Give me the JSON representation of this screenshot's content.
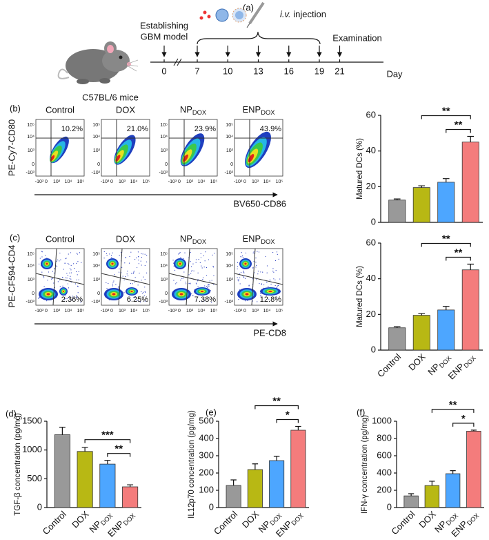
{
  "panel_a": {
    "label": "(a)",
    "mouse": "C57BL/6 mice",
    "model": [
      "Establishing",
      "GBM model"
    ],
    "injection_route": "i.v.",
    "injection": "injection",
    "examination": "Examination",
    "axis_label": "Day",
    "days": [
      0,
      7,
      10,
      13,
      16,
      19,
      21
    ]
  },
  "panel_b": {
    "label": "(b)",
    "y_axis": "PE-Cy7-CD80",
    "x_axis": "BV650-CD86",
    "ticks": [
      "-10³",
      "0",
      "10³",
      "10⁴",
      "10⁵"
    ],
    "plots": [
      {
        "title": "Control",
        "percent": "10.2%"
      },
      {
        "title": "DOX",
        "percent": "21.0%"
      },
      {
        "title": "NPDOX",
        "percent": "23.9%"
      },
      {
        "title": "ENPDOX",
        "percent": "43.9%"
      }
    ]
  },
  "panel_c": {
    "label": "(c)",
    "y_axis": "PE-CF594-CD4",
    "x_axis": "PE-CD8",
    "ticks": [
      "-10³",
      "0",
      "10³",
      "10⁴",
      "10⁵"
    ],
    "plots": [
      {
        "title": "Control",
        "percent": "2.36%"
      },
      {
        "title": "DOX",
        "percent": "6.25%"
      },
      {
        "title": "NPDOX",
        "percent": "7.38%"
      },
      {
        "title": "ENPDOX",
        "percent": "12.8%"
      }
    ]
  },
  "chart_data": [
    {
      "type": "bar",
      "y_label": "Matured DCs (%)",
      "categories": [
        null,
        null,
        null,
        null
      ],
      "values": [
        12.5,
        19.5,
        22.5,
        45
      ],
      "errors": [
        0.6,
        1.0,
        2.0,
        3.2
      ],
      "colors": [
        "#999999",
        "#b8b814",
        "#4da6ff",
        "#f47c7c"
      ],
      "ylim": [
        0,
        60
      ],
      "yticks": [
        0,
        20,
        40,
        60
      ],
      "significance": [
        {
          "label": "**",
          "from": 1,
          "to": 3
        },
        {
          "label": "**",
          "from": 2,
          "to": 3
        }
      ]
    },
    {
      "type": "bar",
      "y_label": "Matured DCs (%)",
      "categories": [
        "Control",
        "DOX",
        "NPDOX",
        "ENPDOX"
      ],
      "values": [
        12.5,
        19.5,
        22.5,
        45
      ],
      "errors": [
        0.6,
        1.0,
        2.0,
        3.2
      ],
      "colors": [
        "#999999",
        "#b8b814",
        "#4da6ff",
        "#f47c7c"
      ],
      "ylim": [
        0,
        60
      ],
      "yticks": [
        0,
        20,
        40,
        60
      ],
      "significance": [
        {
          "label": "**",
          "from": 1,
          "to": 3
        },
        {
          "label": "**",
          "from": 2,
          "to": 3
        }
      ]
    },
    {
      "type": "bar",
      "label": "(d)",
      "y_label": "TGF-β concentration (pg/mg)",
      "categories": [
        "Control",
        "DOX",
        "NPDOX",
        "ENPDOX"
      ],
      "values": [
        1265,
        975,
        755,
        360
      ],
      "errors": [
        130,
        70,
        65,
        35
      ],
      "colors": [
        "#999999",
        "#b8b814",
        "#4da6ff",
        "#f47c7c"
      ],
      "ylim": [
        0,
        1500
      ],
      "yticks": [
        0,
        500,
        1000,
        1500
      ],
      "significance": [
        {
          "label": "***",
          "from": 1,
          "to": 3
        },
        {
          "label": "**",
          "from": 2,
          "to": 3
        }
      ]
    },
    {
      "type": "bar",
      "label": "(e)",
      "y_label": "IL12p70 concentration (pg/mg)",
      "categories": [
        "Control",
        "DOX",
        "NPDOX",
        "ENPDOX"
      ],
      "values": [
        128,
        220,
        272,
        448
      ],
      "errors": [
        32,
        33,
        25,
        22
      ],
      "colors": [
        "#999999",
        "#b8b814",
        "#4da6ff",
        "#f47c7c"
      ],
      "ylim": [
        0,
        500
      ],
      "yticks": [
        0,
        100,
        200,
        300,
        400,
        500
      ],
      "significance": [
        {
          "label": "**",
          "from": 1,
          "to": 3
        },
        {
          "label": "*",
          "from": 2,
          "to": 3
        }
      ]
    },
    {
      "type": "bar",
      "label": "(f)",
      "y_label": "IFN-γ concentration (pg/mg)",
      "categories": [
        "Control",
        "DOX",
        "NPDOX",
        "ENPDOX"
      ],
      "values": [
        135,
        255,
        392,
        885
      ],
      "errors": [
        25,
        50,
        35,
        12
      ],
      "colors": [
        "#999999",
        "#b8b814",
        "#4da6ff",
        "#f47c7c"
      ],
      "ylim": [
        0,
        1000
      ],
      "yticks": [
        0,
        200,
        400,
        600,
        800,
        1000
      ],
      "significance": [
        {
          "label": "**",
          "from": 1,
          "to": 3
        },
        {
          "label": "*",
          "from": 2,
          "to": 3
        }
      ]
    }
  ]
}
